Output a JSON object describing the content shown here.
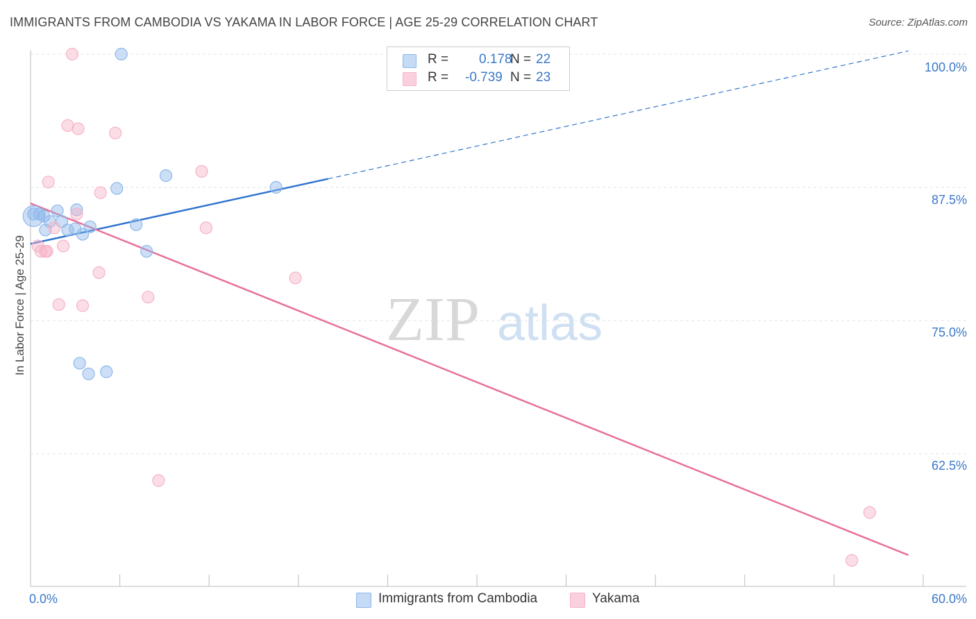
{
  "chart_data": {
    "type": "scatter",
    "title": "IMMIGRANTS FROM CAMBODIA VS YAKAMA IN LABOR FORCE | AGE 25-29 CORRELATION CHART",
    "source": "Source: ZipAtlas.com",
    "xlabel": "",
    "ylabel": "In Labor Force | Age 25-29",
    "xlim": [
      0,
      60
    ],
    "ylim": [
      51,
      101
    ],
    "x_tick_labels": {
      "min": "0.0%",
      "max": "60.0%"
    },
    "y_ticks": [
      {
        "value": 62.5,
        "label": "62.5%"
      },
      {
        "value": 75.0,
        "label": "75.0%"
      },
      {
        "value": 87.5,
        "label": "87.5%"
      },
      {
        "value": 100.0,
        "label": "100.0%"
      }
    ],
    "grid": true,
    "watermark": {
      "zip": "ZIP",
      "atlas": "atlas"
    },
    "legend": {
      "entries": [
        {
          "r_label": "R =",
          "r_value": "0.178",
          "n_label": "N =",
          "n_value": "22"
        },
        {
          "r_label": "R =",
          "r_value": "-0.739",
          "n_label": "N =",
          "n_value": "23"
        }
      ]
    },
    "series": [
      {
        "name": "Immigrants from Cambodia",
        "color": "#8db8ea",
        "line_color": "#2f74cd",
        "points": [
          [
            0.2,
            85.0
          ],
          [
            0.6,
            85.0
          ],
          [
            0.9,
            84.8
          ],
          [
            1.0,
            83.5
          ],
          [
            1.3,
            84.3
          ],
          [
            1.8,
            85.3
          ],
          [
            2.1,
            84.3
          ],
          [
            2.5,
            83.5
          ],
          [
            3.0,
            83.6
          ],
          [
            3.1,
            85.4
          ],
          [
            3.5,
            83.1
          ],
          [
            4.0,
            83.8
          ],
          [
            5.8,
            87.4
          ],
          [
            6.1,
            100.0
          ],
          [
            7.1,
            84.0
          ],
          [
            7.8,
            81.5
          ],
          [
            9.1,
            88.6
          ],
          [
            16.5,
            87.5
          ],
          [
            3.3,
            71.0
          ],
          [
            3.9,
            70.0
          ],
          [
            5.1,
            70.2
          ],
          [
            0.2,
            84.8
          ]
        ],
        "trend": {
          "x0": 0,
          "y0": 82.2,
          "x1": 20,
          "y1": 88.3,
          "dash_to_x": 59,
          "dash_to_y": 100.3
        }
      },
      {
        "name": "Yakama",
        "color": "#f6b3c8",
        "line_color": "#e8709a",
        "points": [
          [
            2.8,
            100.0
          ],
          [
            2.5,
            93.3
          ],
          [
            3.2,
            93.0
          ],
          [
            5.7,
            92.6
          ],
          [
            1.2,
            88.0
          ],
          [
            11.5,
            89.0
          ],
          [
            4.7,
            87.0
          ],
          [
            3.1,
            85.0
          ],
          [
            0.5,
            82.0
          ],
          [
            0.7,
            81.5
          ],
          [
            1.1,
            81.5
          ],
          [
            2.2,
            82.0
          ],
          [
            1.6,
            83.7
          ],
          [
            11.8,
            83.7
          ],
          [
            4.6,
            79.5
          ],
          [
            17.8,
            79.0
          ],
          [
            7.9,
            77.2
          ],
          [
            1.9,
            76.5
          ],
          [
            3.5,
            76.4
          ],
          [
            8.6,
            60.0
          ],
          [
            56.4,
            57.0
          ],
          [
            55.2,
            52.5
          ],
          [
            1.0,
            81.5
          ]
        ],
        "trend": {
          "x0": 0,
          "y0": 86.0,
          "x1": 59,
          "y1": 53.0
        }
      }
    ]
  }
}
